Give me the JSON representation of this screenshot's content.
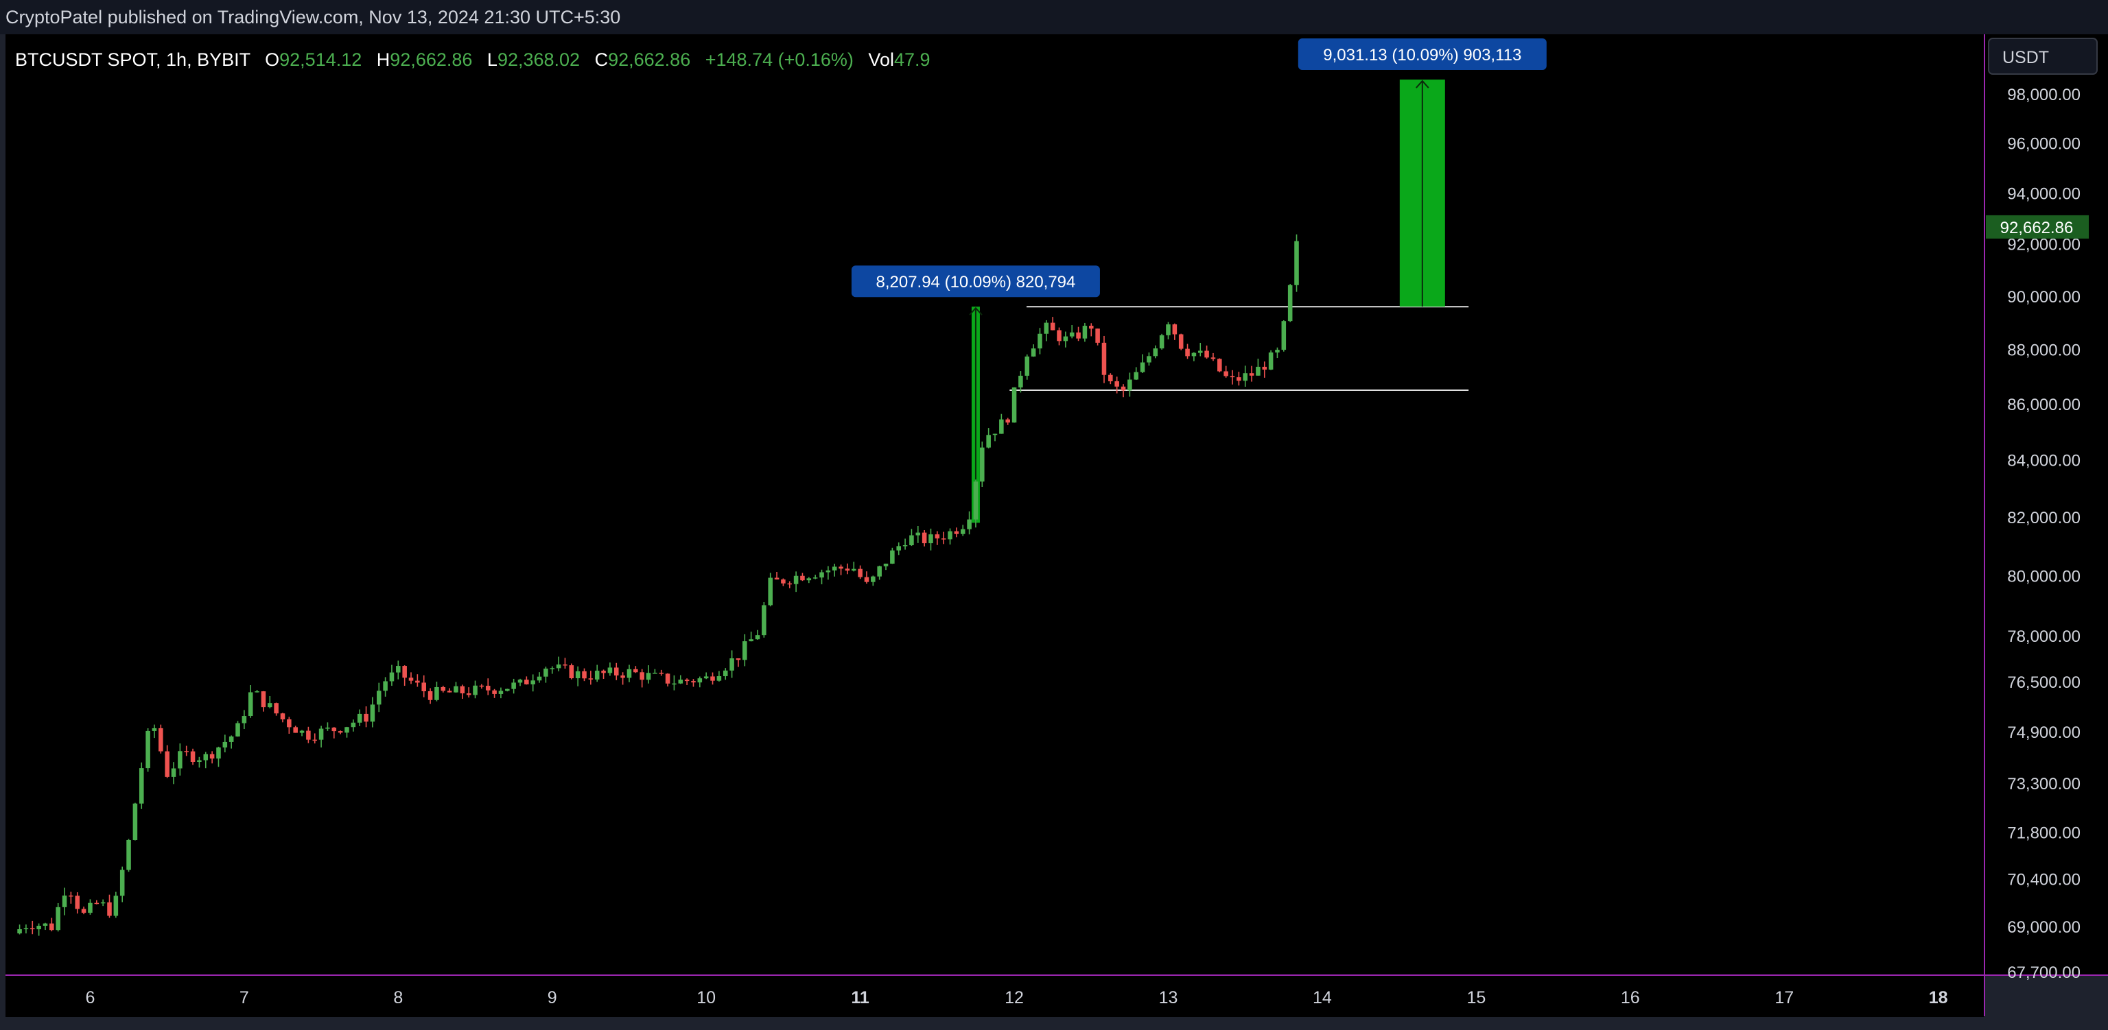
{
  "header": {
    "publisher_line": "CryptoPatel published on TradingView.com, Nov 13, 2024 21:30 UTC+5:30"
  },
  "legend": {
    "symbol": "BTCUSDT SPOT, 1h, BYBIT",
    "o_label": "O",
    "o_value": "92,514.12",
    "h_label": "H",
    "h_value": "92,662.86",
    "l_label": "L",
    "l_value": "92,368.02",
    "c_label": "C",
    "c_value": "92,662.86",
    "change": "+148.74 (+0.16%)",
    "vol_label": "Vol",
    "vol_value": "47.9"
  },
  "currency_button": {
    "label": "USDT"
  },
  "last_price_label": "92,662.86",
  "colors": {
    "up": "#26a69a",
    "up_candle": "#4caf50",
    "down": "#ef5350",
    "measure_box": "#0aa81a",
    "label_bg": "#0d47a1",
    "axis_border": "#9c27b0",
    "background": "#000000"
  },
  "chart_data": {
    "type": "candlestick",
    "title": "BTCUSDT SPOT, 1h, BYBIT",
    "x_axis": {
      "ticks": [
        "6",
        "7",
        "8",
        "9",
        "10",
        "11",
        "12",
        "13",
        "14",
        "15",
        "16",
        "17",
        "18"
      ],
      "range_days": [
        5.45,
        18.3
      ]
    },
    "y_axis": {
      "ticks": [
        "98,000.00",
        "96,000.00",
        "94,000.00",
        "92,000.00",
        "90,000.00",
        "88,000.00",
        "86,000.00",
        "84,000.00",
        "82,000.00",
        "80,000.00",
        "78,000.00",
        "76,500.00",
        "74,900.00",
        "73,300.00",
        "71,800.00",
        "70,400.00",
        "69,000.00",
        "67,700.00"
      ],
      "scale": "log",
      "range": [
        67600,
        100500
      ]
    },
    "last_price": 92662.86,
    "series": [
      {
        "ohlc_points": [
          {
            "day": 5.5,
            "price": 68800
          },
          {
            "day": 5.6,
            "price": 69100
          },
          {
            "day": 5.75,
            "price": 69000
          },
          {
            "day": 5.85,
            "price": 70300
          },
          {
            "day": 5.95,
            "price": 69300
          },
          {
            "day": 6.05,
            "price": 69700
          },
          {
            "day": 6.15,
            "price": 69400
          },
          {
            "day": 6.25,
            "price": 71500
          },
          {
            "day": 6.32,
            "price": 73500
          },
          {
            "day": 6.4,
            "price": 75300
          },
          {
            "day": 6.5,
            "price": 73600
          },
          {
            "day": 6.6,
            "price": 74200
          },
          {
            "day": 6.75,
            "price": 74100
          },
          {
            "day": 6.85,
            "price": 74500
          },
          {
            "day": 6.95,
            "price": 74900
          },
          {
            "day": 7.05,
            "price": 76200
          },
          {
            "day": 7.25,
            "price": 75300
          },
          {
            "day": 7.4,
            "price": 74800
          },
          {
            "day": 7.6,
            "price": 75000
          },
          {
            "day": 7.8,
            "price": 75400
          },
          {
            "day": 7.9,
            "price": 76500
          },
          {
            "day": 8.0,
            "price": 76800
          },
          {
            "day": 8.2,
            "price": 76100
          },
          {
            "day": 8.5,
            "price": 76200
          },
          {
            "day": 8.8,
            "price": 76400
          },
          {
            "day": 8.95,
            "price": 77000
          },
          {
            "day": 9.2,
            "price": 76700
          },
          {
            "day": 9.5,
            "price": 76800
          },
          {
            "day": 9.8,
            "price": 76500
          },
          {
            "day": 10.0,
            "price": 76600
          },
          {
            "day": 10.2,
            "price": 77300
          },
          {
            "day": 10.35,
            "price": 78200
          },
          {
            "day": 10.4,
            "price": 79700
          },
          {
            "day": 10.6,
            "price": 80000
          },
          {
            "day": 10.8,
            "price": 80200
          },
          {
            "day": 10.95,
            "price": 80300
          },
          {
            "day": 11.05,
            "price": 79600
          },
          {
            "day": 11.15,
            "price": 80400
          },
          {
            "day": 11.3,
            "price": 81300
          },
          {
            "day": 11.45,
            "price": 81200
          },
          {
            "day": 11.6,
            "price": 81500
          },
          {
            "day": 11.7,
            "price": 81900
          },
          {
            "day": 11.8,
            "price": 84800
          },
          {
            "day": 11.95,
            "price": 85400
          },
          {
            "day": 12.08,
            "price": 87900
          },
          {
            "day": 12.2,
            "price": 88800
          },
          {
            "day": 12.35,
            "price": 88300
          },
          {
            "day": 12.5,
            "price": 88900
          },
          {
            "day": 12.6,
            "price": 86800
          },
          {
            "day": 12.7,
            "price": 86400
          },
          {
            "day": 12.85,
            "price": 87500
          },
          {
            "day": 13.0,
            "price": 89100
          },
          {
            "day": 13.1,
            "price": 88000
          },
          {
            "day": 13.25,
            "price": 87700
          },
          {
            "day": 13.4,
            "price": 86800
          },
          {
            "day": 13.55,
            "price": 87100
          },
          {
            "day": 13.72,
            "price": 87900
          },
          {
            "day": 13.78,
            "price": 89800
          },
          {
            "day": 13.85,
            "price": 92600
          }
        ]
      }
    ],
    "range_lines": [
      {
        "day_start": 12.08,
        "day_end": 14.95,
        "price": 89600
      },
      {
        "day_start": 11.97,
        "day_end": 14.95,
        "price": 86500
      }
    ],
    "measurements": [
      {
        "label": "8,207.94 (10.09%) 820,794",
        "day": 11.75,
        "price_from": 81800,
        "price_to": 89600
      },
      {
        "label": "9,031.13 (10.09%) 903,113",
        "day": 14.65,
        "price_from": 89600,
        "price_to": 98600
      }
    ]
  }
}
